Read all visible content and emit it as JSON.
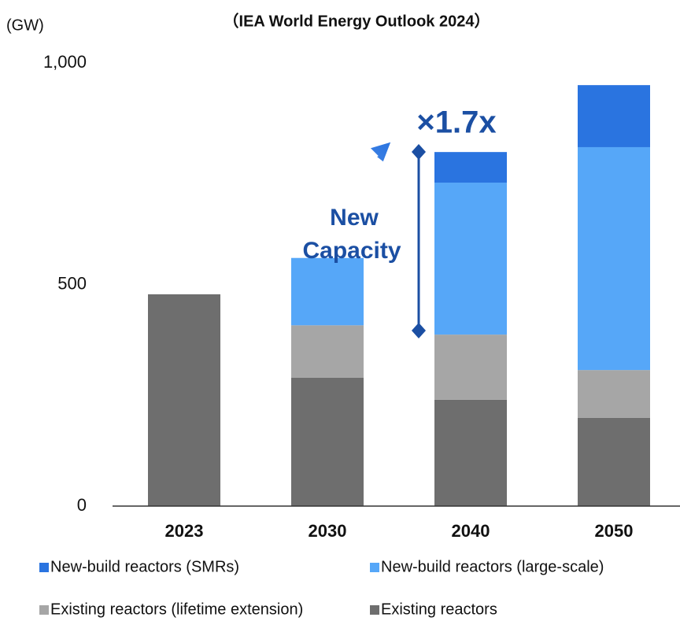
{
  "chart_data": {
    "type": "stacked_bar",
    "title": "（IEA World Energy Outlook 2024）",
    "y_label": "(GW)",
    "categories": [
      "2023",
      "2030",
      "2040",
      "2050"
    ],
    "series": [
      {
        "name": "New-build reactors (SMRs)",
        "color": "#2a74e0",
        "values": [
          0,
          0,
          69,
          140
        ]
      },
      {
        "name": "New-build reactors (large-scale)",
        "color": "#56a7f8",
        "values": [
          0,
          152,
          343,
          503
        ]
      },
      {
        "name": "Existing reactors (lifetime extension)",
        "color": "#a6a6a6",
        "values": [
          0,
          118,
          147,
          108
        ]
      },
      {
        "name": "Existing reactors",
        "color": "#6e6e6e",
        "values": [
          478,
          290,
          240,
          199
        ]
      }
    ],
    "ylim": [
      0,
      1000
    ],
    "yticks": [
      0,
      500,
      {
        "value": 1000,
        "label": "1,000"
      }
    ],
    "annotations": {
      "multiplier": "×1.7x",
      "new_capacity": [
        "New",
        "Capacity"
      ]
    }
  }
}
